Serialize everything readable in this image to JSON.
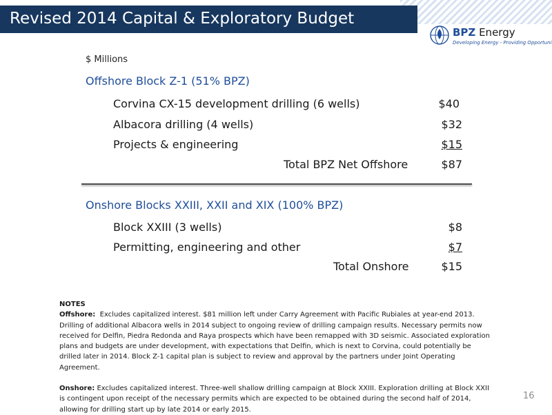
{
  "slide": {
    "title": "Revised 2014 Capital & Exploratory Budget",
    "page_number": "16"
  },
  "logo": {
    "name_bold": "BPZ",
    "name_regular": " Energy",
    "tagline": "Developing Energy - Providing Opportunities"
  },
  "budget": {
    "unit": "$ Millions",
    "offshore": {
      "heading": "Offshore Block Z-1 (51% BPZ)",
      "items": [
        {
          "label": "Corvina CX-15 development drilling (6 wells)",
          "amount": "$40"
        },
        {
          "label": "Albacora drilling (4 wells)",
          "amount": "$32"
        },
        {
          "label": "Projects & engineering",
          "amount": "$15"
        }
      ],
      "total_label": "Total BPZ Net Offshore",
      "total_amount": "$87"
    },
    "onshore": {
      "heading": "Onshore Blocks XXIII, XXII and XIX (100% BPZ)",
      "items": [
        {
          "label": "Block XXIII (3 wells)",
          "amount": "$8"
        },
        {
          "label": "Permitting, engineering and other",
          "amount": "$7"
        }
      ],
      "total_label": "Total Onshore",
      "total_amount": "$15"
    }
  },
  "notes": {
    "heading": "NOTES",
    "offshore_label": "Offshore:",
    "offshore_text": "Excludes capitalized interest. $81 million left under Carry Agreement with Pacific Rubiales at year-end 2013. Drilling of additional Albacora wells in 2014 subject to ongoing review of drilling campaign results. Necessary permits now received for Delfin, Piedra Redonda and Raya prospects which have been remapped with 3D seismic. Associated exploration plans and budgets are under development, with expectations that Delfin, which is next to Corvina, could potentially be drilled later in 2014. Block Z-1 capital plan is subject to review and approval by the partners under Joint Operating Agreement.",
    "onshore_label": "Onshore:",
    "onshore_text": "Excludes capitalized interest. Three-well shallow drilling campaign at Block XXIII. Exploration drilling at Block XXII is contingent upon receipt of the necessary permits which are expected to be obtained during the second half of 2014, allowing for drilling start up by late 2014 or early 2015."
  },
  "colors": {
    "title_bar": "#17375e",
    "heading_blue": "#1f4e9a"
  }
}
